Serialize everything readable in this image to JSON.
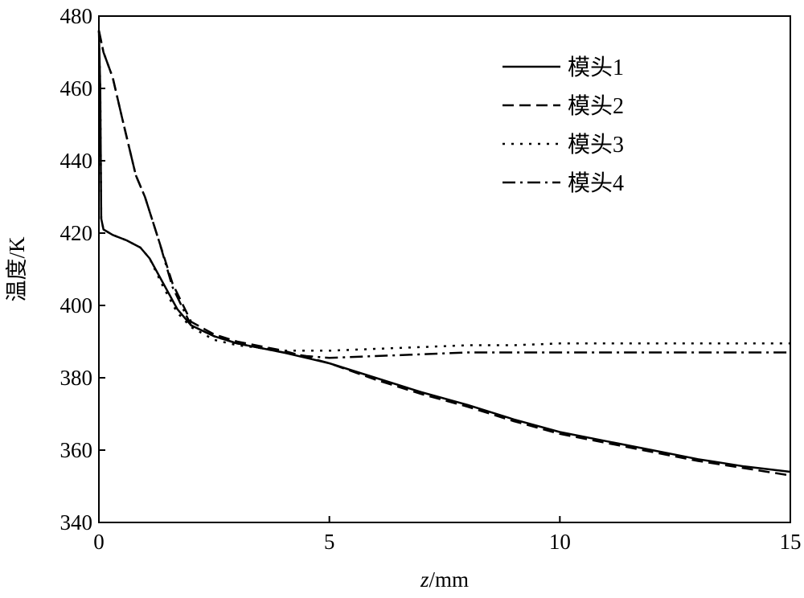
{
  "chart_data": {
    "type": "line",
    "title": "",
    "xlabel_italic": "z",
    "xlabel_unit": "/mm",
    "ylabel": "温度/K",
    "xlim": [
      0,
      15
    ],
    "ylim": [
      340,
      480
    ],
    "xticks": [
      0,
      5,
      10,
      15
    ],
    "yticks": [
      340,
      360,
      380,
      400,
      420,
      440,
      460,
      480
    ],
    "grid": false,
    "legend_position": "top-right",
    "series": [
      {
        "name": "模头1",
        "dash": "solid",
        "x": [
          0,
          0.03,
          0.05,
          0.1,
          0.3,
          0.6,
          0.9,
          1.1,
          1.4,
          1.7,
          2.0,
          2.5,
          3.0,
          4.0,
          5.0,
          6.0,
          7.0,
          8.0,
          9.0,
          10.0,
          11.0,
          12.0,
          13.0,
          14.0,
          15.0
        ],
        "y": [
          476,
          460,
          424,
          421,
          419.5,
          418,
          416,
          413,
          406,
          399,
          394.5,
          391.5,
          389.5,
          387,
          384,
          380,
          376,
          372.5,
          368.5,
          365,
          362.5,
          360,
          357.5,
          355.5,
          354
        ]
      },
      {
        "name": "模头2",
        "dash": "long-dash",
        "x": [
          0,
          0.1,
          0.3,
          0.5,
          0.8,
          1.0,
          1.3,
          1.6,
          2.0,
          2.5,
          3.0,
          4.0,
          5.0,
          6.0,
          7.0,
          8.0,
          9.0,
          10.0,
          11.0,
          12.0,
          13.0,
          14.0,
          15.0
        ],
        "y": [
          476,
          470,
          463,
          452,
          436,
          430,
          418,
          406,
          395.5,
          392,
          390,
          387.5,
          384,
          379.5,
          375.5,
          372,
          368,
          364.5,
          362,
          359.5,
          357,
          355,
          353
        ]
      },
      {
        "name": "模头3",
        "dash": "dotted",
        "x": [
          0,
          0.03,
          0.05,
          0.1,
          0.3,
          0.6,
          0.9,
          1.1,
          1.4,
          1.7,
          2.0,
          2.5,
          3.0,
          4.0,
          5.0,
          6.0,
          7.0,
          8.0,
          9.0,
          10.0,
          11.0,
          12.0,
          13.0,
          14.0,
          15.0
        ],
        "y": [
          476,
          460,
          424,
          421,
          419.5,
          418,
          416,
          413,
          405,
          398,
          394,
          390.5,
          389,
          387.5,
          387.5,
          388,
          388.5,
          389,
          389,
          389.5,
          389.5,
          389.5,
          389.5,
          389.5,
          389.5
        ]
      },
      {
        "name": "模头4",
        "dash": "dash-dot",
        "x": [
          0,
          0.1,
          0.3,
          0.5,
          0.8,
          1.0,
          1.3,
          1.6,
          2.0,
          2.5,
          3.0,
          4.0,
          4.5,
          5.0,
          6.0,
          7.0,
          8.0,
          9.0,
          10.0,
          11.0,
          12.0,
          13.0,
          14.0,
          15.0
        ],
        "y": [
          476,
          470,
          463,
          452,
          436,
          430,
          418,
          405,
          394.5,
          391.5,
          389.5,
          387,
          386,
          385.5,
          386,
          386.5,
          387,
          387,
          387,
          387,
          387,
          387,
          387,
          387
        ]
      }
    ]
  }
}
